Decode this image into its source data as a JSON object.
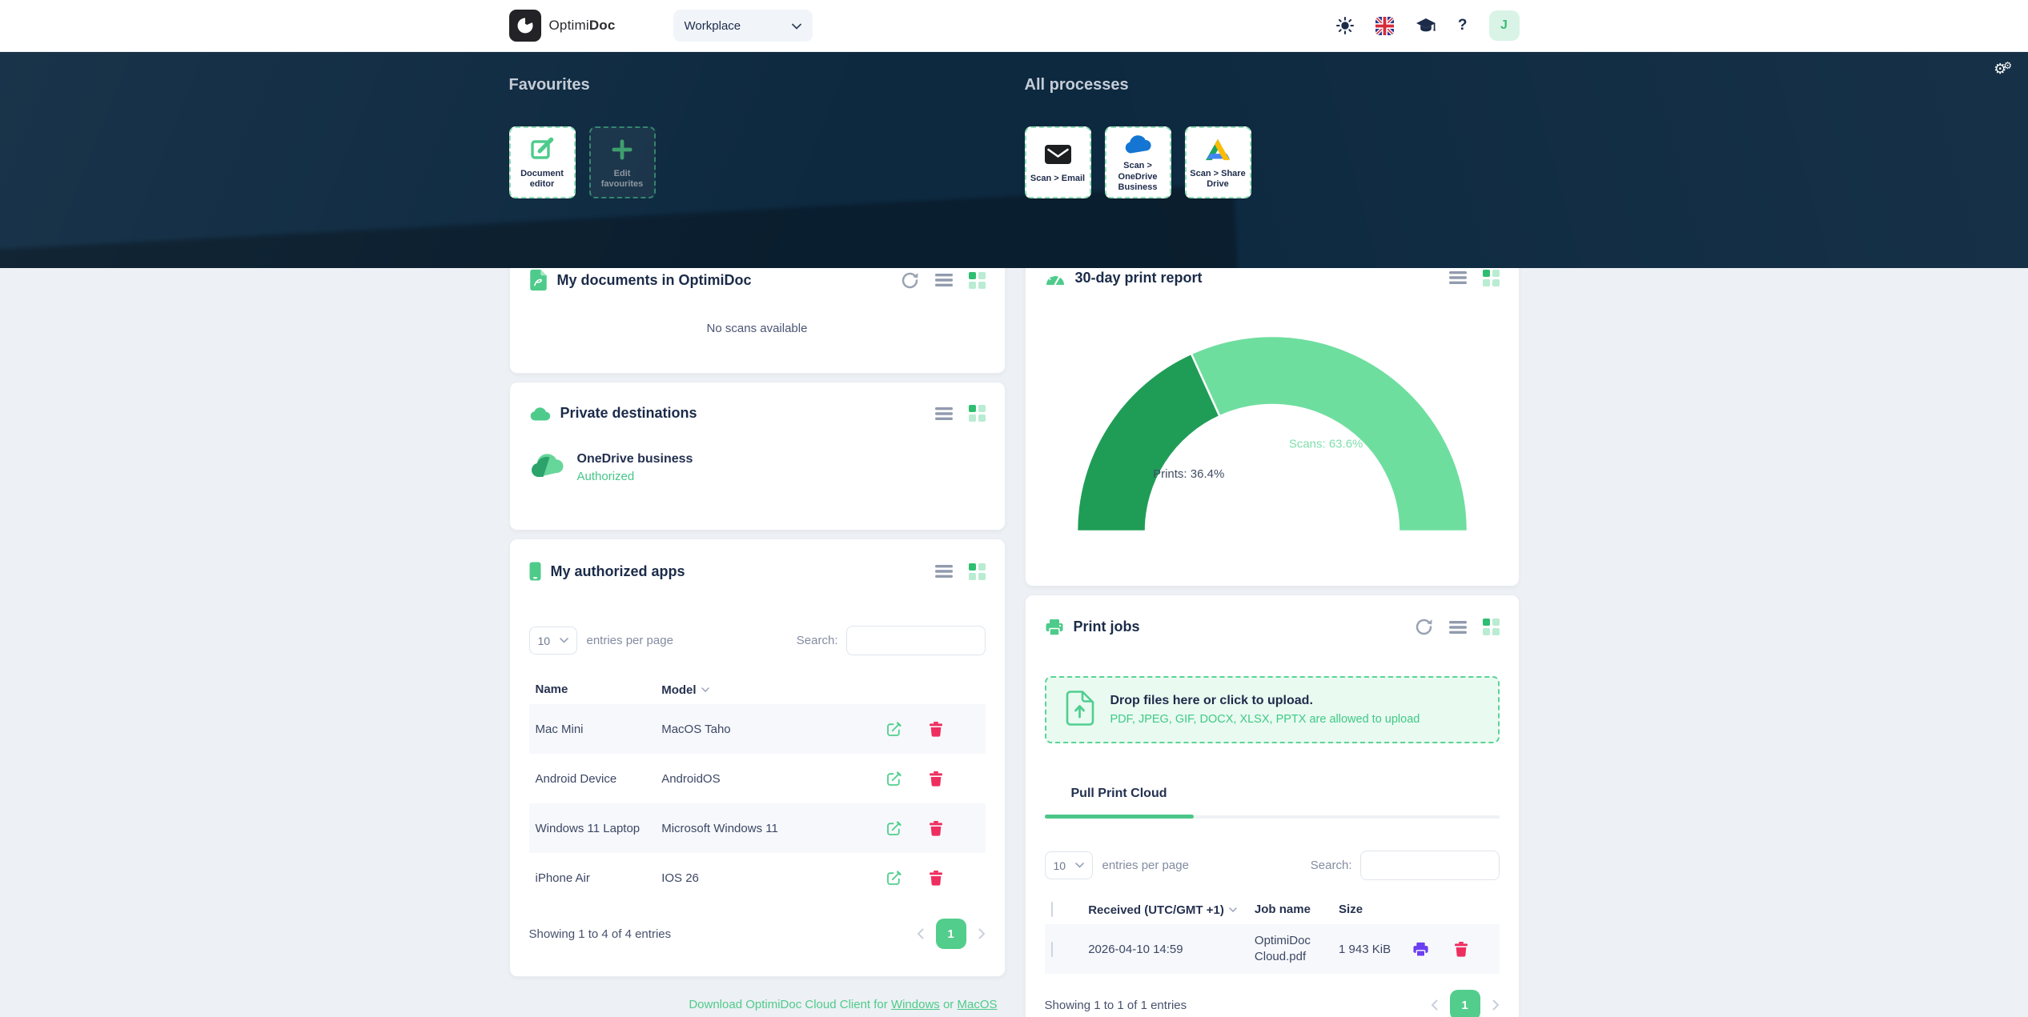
{
  "header": {
    "brand_regular": "Optimi",
    "brand_bold": "Doc",
    "workspace_value": "Workplace",
    "help_glyph": "?",
    "avatar_initial": "J"
  },
  "hero": {
    "settings_glyph": "⚙",
    "favourites_title": "Favourites",
    "favourites": [
      {
        "label": "Document editor"
      },
      {
        "label": "Edit favourites"
      }
    ],
    "processes_title": "All processes",
    "processes": [
      {
        "label": "Scan > Email"
      },
      {
        "label": "Scan > OneDrive Business"
      },
      {
        "label": "Scan > Share Drive"
      }
    ]
  },
  "my_documents": {
    "title": "My documents in OptimiDoc",
    "empty_text": "No scans available"
  },
  "private_destinations": {
    "title": "Private destinations",
    "items": [
      {
        "name": "OneDrive business",
        "status": "Authorized"
      }
    ]
  },
  "authorized_apps": {
    "title": "My authorized apps",
    "entries_value": "10",
    "entries_label": "entries per page",
    "search_label": "Search:",
    "columns": {
      "name": "Name",
      "model": "Model"
    },
    "rows": [
      {
        "name": "Mac Mini",
        "model": "MacOS Taho"
      },
      {
        "name": "Android Device",
        "model": "AndroidOS"
      },
      {
        "name": "Windows 11 Laptop",
        "model": "Microsoft Windows 11"
      },
      {
        "name": "iPhone Air",
        "model": "IOS 26"
      }
    ],
    "summary": "Showing 1 to 4 of 4 entries",
    "page": "1"
  },
  "print_report": {
    "title": "30-day print report"
  },
  "chart_data": {
    "type": "pie",
    "variant": "semi-donut",
    "labels": [
      "Prints",
      "Scans"
    ],
    "values": [
      36.4,
      63.6
    ],
    "colors": [
      "#1f9d57",
      "#6ede9f"
    ],
    "label_texts": [
      "Prints: 36.4%",
      "Scans: 63.6%"
    ],
    "label_colors": [
      "#424d63",
      "#7fe0ab"
    ],
    "start_angle": 180,
    "end_angle": 0,
    "legend": "none",
    "title": "30-day print report"
  },
  "print_jobs": {
    "title": "Print jobs",
    "upload_title": "Drop files here or click to upload.",
    "upload_sub": "PDF, JPEG, GIF, DOCX, XLSX, PPTX are allowed to upload",
    "tab": "Pull Print Cloud",
    "entries_value": "10",
    "entries_label": "entries per page",
    "search_label": "Search:",
    "columns": {
      "received": "Received (UTC/GMT +1)",
      "job_name": "Job name",
      "size": "Size"
    },
    "rows": [
      {
        "received": "2026-04-10 14:59",
        "job_name": "OptimiDoc Cloud.pdf",
        "size": "1 943 KiB"
      }
    ],
    "summary": "Showing 1 to 1 of 1 entries",
    "page": "1"
  },
  "footer": {
    "text_prefix": "Download OptimiDoc Cloud Client for",
    "link_windows": "Windows",
    "text_or": "or",
    "link_macos": "MacOS"
  },
  "colors": {
    "accent_green": "#4ecb8b",
    "chart_dark_green": "#1f9d57",
    "chart_light_green": "#6ede9f",
    "danger_pink": "#ee2e5f",
    "printer_purple": "#6c3ff2",
    "navy_text": "#1b2b49",
    "hero_bg": "#0d2940"
  }
}
